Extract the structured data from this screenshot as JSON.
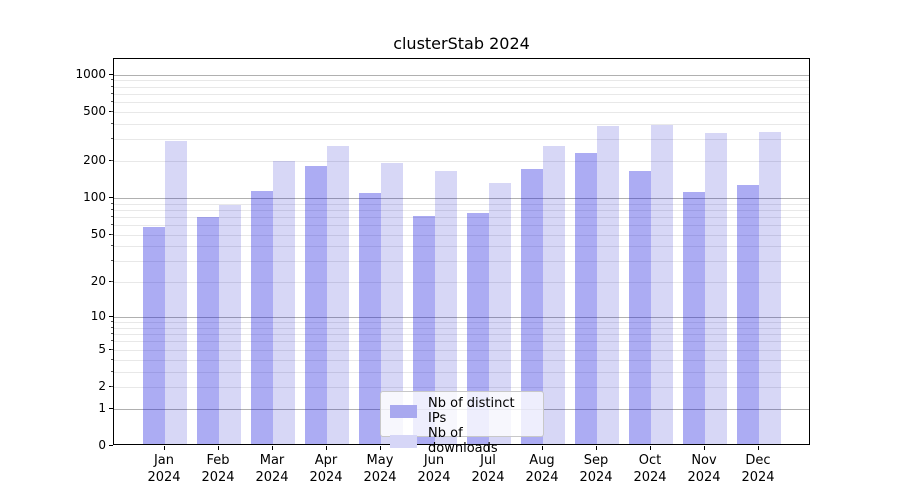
{
  "title": "clusterStab 2024",
  "legend": {
    "items": [
      {
        "label": "Nb of distinct IPs",
        "swatch_color": "#a9a9ef"
      },
      {
        "label": "Nb of downloads",
        "swatch_color": "#d6d6f7"
      }
    ]
  },
  "axes": {
    "x_months": [
      "Jan",
      "Feb",
      "Mar",
      "Apr",
      "May",
      "Jun",
      "Jul",
      "Aug",
      "Sep",
      "Oct",
      "Nov",
      "Dec"
    ],
    "x_year": "2024",
    "y_tick_labels": [
      "1000",
      "500",
      "200",
      "100",
      "50",
      "20",
      "10",
      "5",
      "2",
      "1",
      "0"
    ]
  },
  "colors": {
    "ips_bar": "rgba(18,18,220,0.35)",
    "downloads_bar": "rgba(8,8,198,0.16)",
    "grid_major": "#b0b0b0",
    "grid_minor": "#e8e8e8",
    "spine": "#000000"
  },
  "chart_data": {
    "type": "bar",
    "title": "clusterStab 2024",
    "categories": [
      "Jan 2024",
      "Feb 2024",
      "Mar 2024",
      "Apr 2024",
      "May 2024",
      "Jun 2024",
      "Jul 2024",
      "Aug 2024",
      "Sep 2024",
      "Oct 2024",
      "Nov 2024",
      "Dec 2024"
    ],
    "series": [
      {
        "name": "Nb of distinct IPs",
        "values": [
          56,
          67,
          110,
          175,
          106,
          69,
          73,
          166,
          224,
          159,
          108,
          123
        ]
      },
      {
        "name": "Nb of downloads",
        "values": [
          281,
          84,
          193,
          256,
          186,
          160,
          127,
          255,
          372,
          380,
          324,
          330
        ]
      }
    ],
    "yscale": "log10(value+1)",
    "y_ticks": [
      1000,
      500,
      200,
      100,
      50,
      20,
      10,
      5,
      2,
      1,
      0
    ],
    "minor_grid_ticks": [
      2,
      3,
      4,
      6,
      7,
      8,
      9,
      20,
      30,
      40,
      60,
      70,
      80,
      90,
      200,
      300,
      400,
      600,
      700,
      800,
      900,
      50,
      500,
      5
    ],
    "major_grid_ticks": [
      1,
      10,
      100,
      1000
    ],
    "ylim": [
      0,
      1340
    ],
    "grid": "horizontal",
    "legend_position": "lower center"
  }
}
